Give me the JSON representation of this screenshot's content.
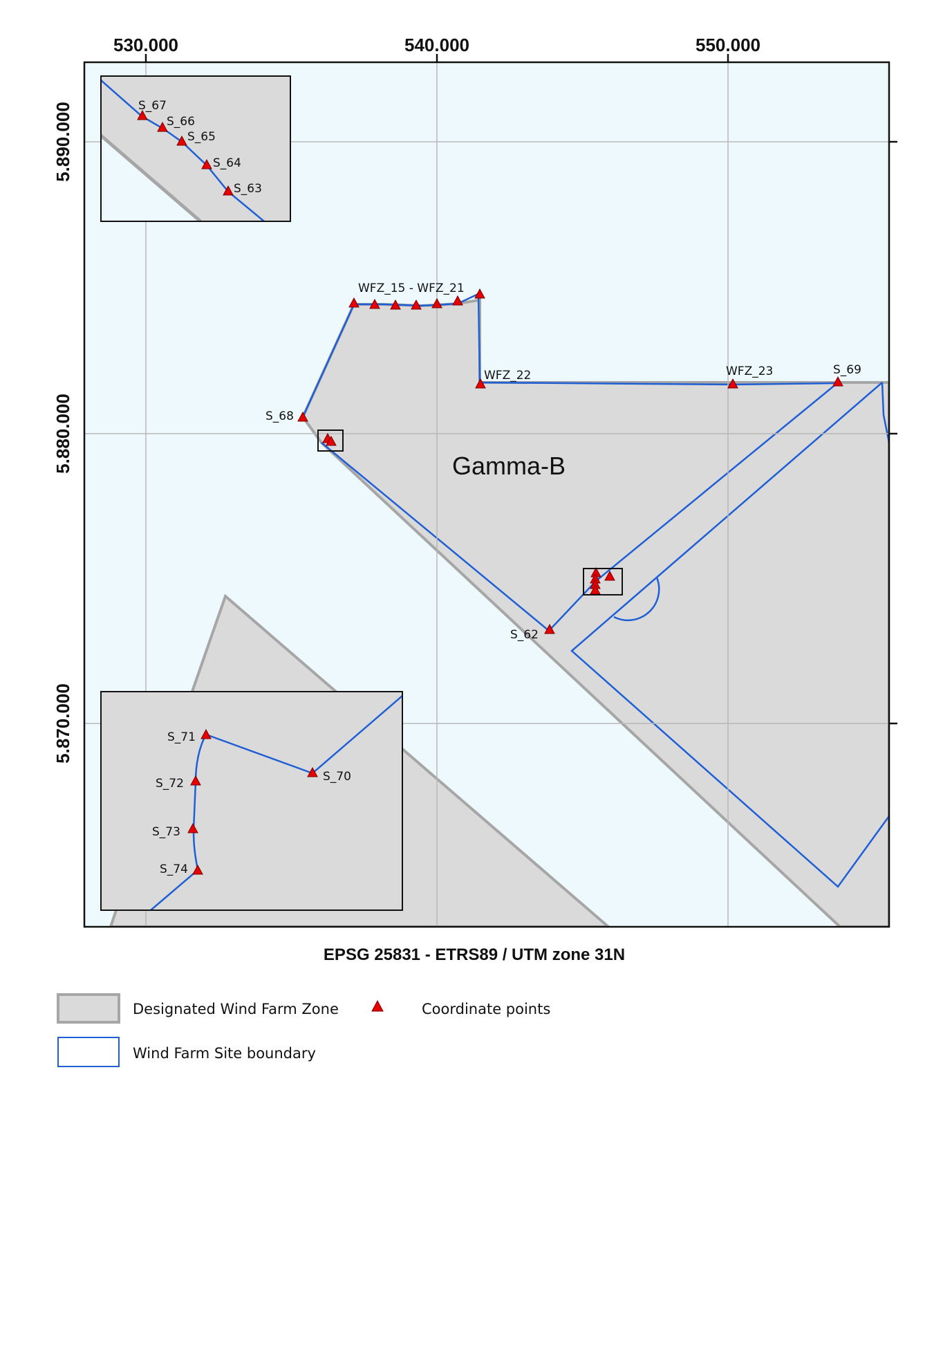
{
  "map": {
    "crs_title": "EPSG 25831 - ETRS89 / UTM zone 31N",
    "x_ticks": [
      "530.000",
      "540.000",
      "550.000"
    ],
    "y_ticks": [
      "5.890.000",
      "5.880.000",
      "5.870.000"
    ],
    "area_label": "Gamma-B",
    "point_labels": {
      "group_15_21": "WFZ_15 - WFZ_21",
      "wfz22": "WFZ_22",
      "wfz23": "WFZ_23",
      "s69": "S_69",
      "s68": "S_68",
      "s62": "S_62"
    },
    "inset_top_labels": [
      "S_67",
      "S_66",
      "S_65",
      "S_64",
      "S_63"
    ],
    "inset_bottom_labels": [
      "S_71",
      "S_70",
      "S_72",
      "S_73",
      "S_74"
    ]
  },
  "legend": {
    "zone_label": "Designated Wind Farm Zone",
    "points_label": "Coordinate points",
    "boundary_label": "Wind Farm Site boundary"
  },
  "colors": {
    "sea": "#eef9fd",
    "zone_fill": "#dadada",
    "zone_edge": "#a6a6a6",
    "boundary": "#1f5fd6",
    "point": "#e60000",
    "grid": "#b8b8b8",
    "frame": "#111111"
  }
}
